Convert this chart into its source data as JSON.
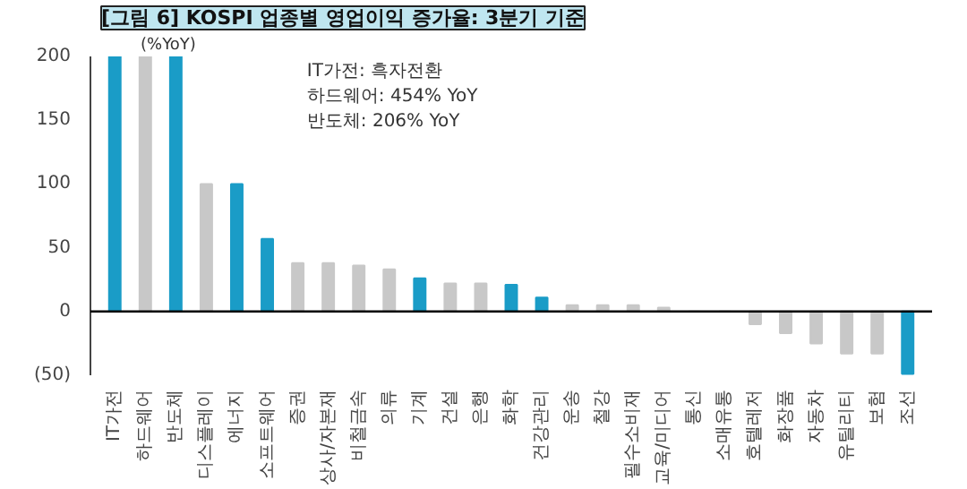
{
  "chart_data": {
    "type": "bar",
    "title": "[그림 6] KOSPI 업종별 영업이익 증가율: 3분기 기준",
    "ylabel": "(%YoY)",
    "categories": [
      "IT가전",
      "하드웨어",
      "반도체",
      "디스플레이",
      "에너지",
      "소프트웨어",
      "증권",
      "상사/자본재",
      "비철금속",
      "의류",
      "기계",
      "건설",
      "은행",
      "화학",
      "건강관리",
      "운송",
      "철강",
      "필수소비재",
      "교육/미디어",
      "통신",
      "소매유통",
      "호텔레저",
      "화장품",
      "자동차",
      "유틸리티",
      "보험",
      "조선"
    ],
    "values": [
      200,
      200,
      200,
      100,
      100,
      57,
      38,
      38,
      36,
      33,
      26,
      22,
      22,
      21,
      11,
      5,
      5,
      5,
      3,
      0,
      0,
      -10,
      -17,
      -25,
      -33,
      -33,
      -49
    ],
    "colors": [
      "#1a9cc7",
      "#c8c8c8",
      "#1a9cc7",
      "#c8c8c8",
      "#1a9cc7",
      "#1a9cc7",
      "#c8c8c8",
      "#c8c8c8",
      "#c8c8c8",
      "#c8c8c8",
      "#1a9cc7",
      "#c8c8c8",
      "#c8c8c8",
      "#1a9cc7",
      "#1a9cc7",
      "#c8c8c8",
      "#c8c8c8",
      "#c8c8c8",
      "#c8c8c8",
      "#c8c8c8",
      "#c8c8c8",
      "#c8c8c8",
      "#c8c8c8",
      "#c8c8c8",
      "#c8c8c8",
      "#c8c8c8",
      "#1a9cc7"
    ],
    "ylim": [
      -50,
      200
    ],
    "yticks": [
      {
        "value": -50,
        "label": "(50)"
      },
      0,
      50,
      100,
      150,
      200
    ],
    "annotations": [
      "IT가전: 흑자전환",
      "하드웨어: 454% YoY",
      "반도체: 206% YoY"
    ],
    "ref_lines": [
      {
        "axis": "y",
        "value": 0,
        "color": "#000000"
      }
    ]
  }
}
